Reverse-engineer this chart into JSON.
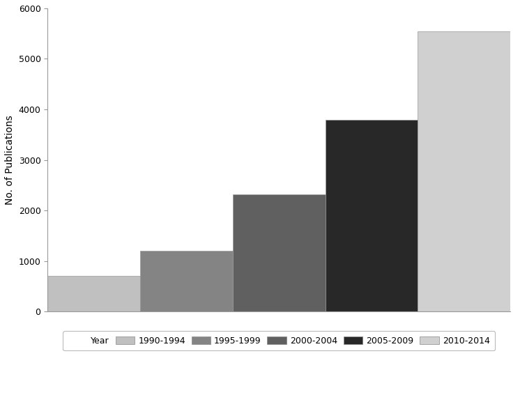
{
  "categories": [
    "1990-1994",
    "1995-1999",
    "2000-2004",
    "2005-2009",
    "2010-2014"
  ],
  "values": [
    700,
    1200,
    2320,
    3800,
    5550
  ],
  "bar_colors": [
    "#c0c0c0",
    "#848484",
    "#606060",
    "#282828",
    "#d0d0d0"
  ],
  "ylabel": "No. of Publications",
  "ylim": [
    0,
    6000
  ],
  "yticks": [
    0,
    1000,
    2000,
    3000,
    4000,
    5000,
    6000
  ],
  "legend_label": "Year",
  "background_color": "#ffffff",
  "bar_edge_color": "#999999",
  "bar_edge_linewidth": 0.5
}
